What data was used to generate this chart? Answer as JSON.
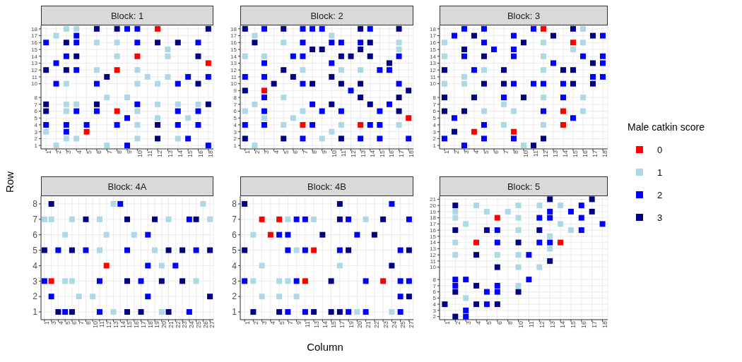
{
  "chart_data": [
    {
      "type": "scatter",
      "title": "Block: 1",
      "marker": "square",
      "grid": true,
      "legend": "right",
      "legend_title": "Male catkin score",
      "categories": [
        "1",
        "2",
        "3",
        "4",
        "5",
        "6",
        "7",
        "8",
        "9",
        "10",
        "11",
        "12",
        "13",
        "14",
        "15",
        "16",
        "18"
      ],
      "ylim": [
        0.5,
        18.5
      ],
      "yticks": [
        1,
        2,
        3,
        4,
        5,
        6,
        7,
        8,
        10,
        11,
        12,
        13,
        14,
        15,
        16,
        17,
        18
      ],
      "series": [
        {
          "name": "0",
          "color": "#ff0000",
          "x": [
            "12",
            "10",
            "18",
            "8",
            "8",
            "5"
          ],
          "values": [
            18,
            14,
            13,
            12,
            6,
            3
          ]
        },
        {
          "name": "1",
          "color": "#add8e6",
          "x": [
            "3",
            "4",
            "2",
            "6",
            "8",
            "13",
            "8",
            "13",
            "6",
            "10",
            "11",
            "13",
            "3",
            "10",
            "12",
            "7",
            "9",
            "3",
            "4",
            "12",
            "14",
            "16",
            "3",
            "10",
            "12",
            "15",
            "10",
            "1",
            "3",
            "4",
            "10",
            "14",
            "2",
            "7"
          ],
          "values": [
            18,
            18,
            17,
            16,
            16,
            15,
            14,
            14,
            12,
            12,
            11,
            11,
            10,
            10,
            10,
            8,
            8,
            7,
            7,
            7,
            7,
            7,
            6,
            6,
            5,
            5,
            4,
            3,
            2,
            2,
            2,
            2,
            1,
            1
          ]
        },
        {
          "name": "2",
          "color": "#0000ff",
          "x": [
            "9",
            "10",
            "4",
            "1",
            "4",
            "10",
            "16",
            "3",
            "2",
            "4",
            "15",
            "18",
            "2",
            "6",
            "14",
            "10",
            "4",
            "6",
            "14",
            "16",
            "9",
            "1",
            "3",
            "5",
            "8",
            "14",
            "16",
            "3",
            "15",
            "9",
            "18"
          ],
          "values": [
            18,
            18,
            17,
            16,
            16,
            16,
            16,
            14,
            13,
            12,
            11,
            11,
            10,
            10,
            10,
            7,
            6,
            6,
            6,
            6,
            5,
            4,
            4,
            4,
            4,
            4,
            4,
            3,
            2,
            1,
            1
          ]
        },
        {
          "name": "3",
          "color": "#000080",
          "x": [
            "6",
            "8",
            "18",
            "3",
            "12",
            "14",
            "4",
            "16",
            "1",
            "3",
            "7",
            "16",
            "1",
            "6",
            "18",
            "1",
            "12",
            "12"
          ],
          "values": [
            18,
            18,
            18,
            16,
            16,
            16,
            14,
            14,
            12,
            12,
            11,
            10,
            7,
            7,
            7,
            6,
            4,
            2
          ]
        }
      ]
    },
    {
      "type": "scatter",
      "title": "Block: 2",
      "marker": "square",
      "grid": true,
      "categories": [
        "1",
        "2",
        "3",
        "4",
        "5",
        "6",
        "7",
        "8",
        "9",
        "10",
        "11",
        "12",
        "13",
        "14",
        "15",
        "16",
        "17",
        "18"
      ],
      "ylim": [
        0.5,
        18.5
      ],
      "yticks": [
        1,
        2,
        3,
        4,
        5,
        6,
        7,
        8,
        9,
        10,
        11,
        12,
        13,
        14,
        15,
        16,
        17,
        18
      ],
      "series": [
        {
          "name": "0",
          "color": "#ff0000",
          "x": [
            "3",
            "18",
            "7",
            "13"
          ],
          "values": [
            9,
            5,
            4,
            4
          ]
        },
        {
          "name": "1",
          "color": "#add8e6",
          "x": [
            "2",
            "10",
            "5",
            "17",
            "17",
            "1",
            "3",
            "7",
            "11",
            "13",
            "5",
            "2",
            "1",
            "7",
            "3",
            "6",
            "5",
            "11",
            "17",
            "10",
            "9",
            "2"
          ],
          "values": [
            17,
            17,
            16,
            16,
            15,
            14,
            14,
            12,
            12,
            12,
            8,
            7,
            6,
            6,
            5,
            5,
            4,
            4,
            4,
            3,
            2,
            1
          ]
        },
        {
          "name": "2",
          "color": "#0000ff",
          "x": [
            "3",
            "7",
            "8",
            "9",
            "14",
            "7",
            "10",
            "11",
            "13",
            "6",
            "7",
            "17",
            "3",
            "10",
            "15",
            "16",
            "1",
            "3",
            "7",
            "17",
            "12",
            "3",
            "8",
            "16",
            "3",
            "9",
            "11",
            "15",
            "1",
            "3",
            "8",
            "14",
            "15",
            "7",
            "13",
            "15",
            "18"
          ],
          "values": [
            18,
            18,
            18,
            18,
            18,
            16,
            16,
            16,
            16,
            14,
            14,
            14,
            13,
            13,
            12,
            12,
            11,
            11,
            10,
            10,
            9,
            8,
            7,
            7,
            6,
            6,
            6,
            6,
            4,
            4,
            4,
            4,
            4,
            2,
            2,
            2,
            2
          ]
        },
        {
          "name": "3",
          "color": "#000080",
          "x": [
            "1",
            "5",
            "13",
            "17",
            "2",
            "14",
            "8",
            "9",
            "13",
            "11",
            "12",
            "14",
            "16",
            "5",
            "6",
            "10",
            "4",
            "8",
            "11",
            "13",
            "1",
            "18",
            "13",
            "17",
            "10",
            "14",
            "17",
            "1",
            "5",
            "11"
          ],
          "values": [
            18,
            18,
            18,
            18,
            16,
            16,
            15,
            15,
            15,
            14,
            14,
            14,
            13,
            12,
            11,
            11,
            10,
            10,
            10,
            10,
            9,
            9,
            8,
            8,
            7,
            7,
            6,
            2,
            2,
            2
          ]
        }
      ]
    },
    {
      "type": "scatter",
      "title": "Block: 3",
      "marker": "square",
      "grid": true,
      "categories": [
        "1",
        "2",
        "3",
        "4",
        "5",
        "6",
        "7",
        "8",
        "10",
        "11",
        "12",
        "13",
        "14",
        "15",
        "16",
        "17",
        "18"
      ],
      "ylim": [
        0.5,
        18.5
      ],
      "yticks": [
        1,
        2,
        3,
        4,
        5,
        6,
        7,
        8,
        10,
        11,
        12,
        13,
        14,
        15,
        16,
        17,
        18
      ],
      "series": [
        {
          "name": "0",
          "color": "#ff0000",
          "x": [
            "12",
            "15",
            "14",
            "14",
            "4",
            "8"
          ],
          "values": [
            18,
            16,
            6,
            4,
            3,
            3
          ]
        },
        {
          "name": "1",
          "color": "#add8e6",
          "x": [
            "16",
            "1",
            "12",
            "16",
            "15",
            "1",
            "12",
            "5",
            "12",
            "3",
            "1",
            "3",
            "12",
            "16",
            "7",
            "5",
            "8",
            "16",
            "7",
            "12",
            "10"
          ],
          "values": [
            18,
            16,
            16,
            16,
            15,
            14,
            14,
            12,
            12,
            11,
            10,
            10,
            8,
            8,
            7,
            6,
            6,
            6,
            4,
            4,
            1
          ]
        },
        {
          "name": "2",
          "color": "#0000ff",
          "x": [
            "3",
            "5",
            "11",
            "2",
            "8",
            "18",
            "5",
            "6",
            "8",
            "3",
            "8",
            "16",
            "18",
            "13",
            "18",
            "4",
            "17",
            "18",
            "8",
            "11",
            "12",
            "14",
            "7",
            "14",
            "12",
            "2",
            "15",
            "5",
            "1",
            "5",
            "8",
            "3"
          ],
          "values": [
            18,
            18,
            18,
            17,
            17,
            17,
            16,
            15,
            15,
            14,
            14,
            14,
            14,
            13,
            13,
            12,
            11,
            11,
            10,
            10,
            10,
            10,
            8,
            8,
            6,
            5,
            5,
            4,
            2,
            2,
            2,
            1
          ]
        },
        {
          "name": "3",
          "color": "#000080",
          "x": [
            "15",
            "4",
            "13",
            "17",
            "10",
            "3",
            "5",
            "17",
            "1",
            "7",
            "14",
            "15",
            "5",
            "7",
            "15",
            "17",
            "1",
            "4",
            "10",
            "1",
            "3",
            "2",
            "12",
            "11"
          ],
          "values": [
            18,
            17,
            17,
            17,
            16,
            15,
            14,
            13,
            12,
            12,
            12,
            12,
            10,
            10,
            10,
            10,
            8,
            8,
            8,
            6,
            6,
            3,
            2,
            1
          ]
        }
      ]
    },
    {
      "type": "scatter",
      "title": "Block: 4A",
      "ylabel": "Row",
      "marker": "square",
      "grid": true,
      "categories": [
        "1",
        "3",
        "4",
        "5",
        "6",
        "7",
        "8",
        "10",
        "11",
        "12",
        "13",
        "14",
        "15",
        "16",
        "17",
        "18",
        "19",
        "20",
        "21",
        "22",
        "23",
        "24",
        "25",
        "26",
        "27"
      ],
      "ylim": [
        0.5,
        8.5
      ],
      "yticks": [
        1,
        2,
        3,
        4,
        5,
        6,
        7,
        8
      ],
      "series": [
        {
          "name": "0",
          "color": "#ff0000",
          "x": [
            "12",
            "3"
          ],
          "values": [
            4,
            3
          ]
        },
        {
          "name": "1",
          "color": "#add8e6",
          "x": [
            "13",
            "26",
            "1",
            "3",
            "6",
            "11",
            "21",
            "27",
            "5",
            "12",
            "16",
            "11",
            "19",
            "20",
            "5",
            "6",
            "25",
            "7",
            "10",
            "13",
            "20"
          ],
          "values": [
            8,
            8,
            7,
            7,
            7,
            7,
            7,
            7,
            6,
            6,
            6,
            5,
            5,
            4,
            3,
            3,
            3,
            2,
            2,
            1,
            1
          ]
        },
        {
          "name": "2",
          "color": "#0000ff",
          "x": [
            "14",
            "24",
            "18",
            "4",
            "8",
            "15",
            "25",
            "18",
            "22",
            "1",
            "11",
            "17",
            "3",
            "18",
            "5",
            "11",
            "24"
          ],
          "values": [
            8,
            7,
            6,
            5,
            5,
            5,
            5,
            4,
            4,
            3,
            3,
            3,
            2,
            2,
            1,
            1,
            1
          ]
        },
        {
          "name": "3",
          "color": "#000080",
          "x": [
            "3",
            "8",
            "15",
            "19",
            "25",
            "1",
            "6",
            "21",
            "23",
            "27",
            "15",
            "20",
            "23",
            "27",
            "4",
            "6",
            "15",
            "17",
            "21"
          ],
          "values": [
            8,
            7,
            7,
            7,
            7,
            5,
            5,
            5,
            5,
            5,
            3,
            3,
            3,
            2,
            1,
            1,
            1,
            1,
            1
          ]
        }
      ]
    },
    {
      "type": "scatter",
      "title": "Block: 4B",
      "xlabel": "Column",
      "marker": "square",
      "grid": true,
      "categories": [
        "1",
        "2",
        "3",
        "4",
        "5",
        "7",
        "9",
        "11",
        "13",
        "14",
        "15",
        "17",
        "19",
        "20",
        "21",
        "22",
        "23",
        "24",
        "25",
        "27"
      ],
      "ylim": [
        0.5,
        8.5
      ],
      "yticks": [
        1,
        2,
        3,
        4,
        5,
        6,
        7,
        8
      ],
      "series": [
        {
          "name": "0",
          "color": "#ff0000",
          "x": [
            "3",
            "5",
            "4",
            "13",
            "11",
            "23"
          ],
          "values": [
            7,
            7,
            6,
            5,
            3,
            3
          ]
        },
        {
          "name": "1",
          "color": "#add8e6",
          "x": [
            "7",
            "13",
            "21",
            "2",
            "9",
            "3",
            "17",
            "2",
            "5",
            "7",
            "3",
            "5",
            "9",
            "20",
            "24"
          ],
          "values": [
            7,
            7,
            7,
            6,
            5,
            4,
            4,
            3,
            3,
            3,
            2,
            2,
            2,
            1,
            1
          ]
        },
        {
          "name": "2",
          "color": "#0000ff",
          "x": [
            "24",
            "9",
            "11",
            "19",
            "27",
            "5",
            "7",
            "20",
            "7",
            "11",
            "17",
            "25",
            "1",
            "9",
            "21",
            "25",
            "27",
            "25",
            "7",
            "11",
            "19",
            "21",
            "25"
          ],
          "values": [
            8,
            7,
            7,
            7,
            7,
            6,
            6,
            6,
            5,
            5,
            5,
            5,
            3,
            3,
            3,
            3,
            3,
            2,
            1,
            1,
            1,
            1,
            1
          ]
        },
        {
          "name": "3",
          "color": "#000080",
          "x": [
            "1",
            "17",
            "17",
            "23",
            "14",
            "22",
            "1",
            "19",
            "27",
            "24",
            "15",
            "27",
            "2",
            "5",
            "13",
            "15",
            "17"
          ],
          "values": [
            8,
            8,
            7,
            7,
            6,
            6,
            5,
            5,
            5,
            4,
            3,
            2,
            1,
            1,
            1,
            1,
            1
          ]
        }
      ]
    },
    {
      "type": "scatter",
      "title": "Block: 5",
      "marker": "square",
      "grid": true,
      "categories": [
        "1",
        "2",
        "3",
        "4",
        "5",
        "6",
        "8",
        "10",
        "11",
        "12",
        "13",
        "14",
        "15",
        "16",
        "17",
        "18"
      ],
      "ylim": [
        1.5,
        21.5
      ],
      "yticks": [
        2,
        3,
        4,
        5,
        6,
        7,
        8,
        10,
        11,
        12,
        13,
        14,
        15,
        16,
        17,
        18,
        19,
        20,
        21
      ],
      "series": [
        {
          "name": "0",
          "color": "#ff0000",
          "x": [
            "6",
            "4",
            "14"
          ],
          "values": [
            18,
            14,
            14
          ]
        },
        {
          "name": "1",
          "color": "#add8e6",
          "x": [
            "4",
            "10",
            "12",
            "14",
            "2",
            "5",
            "8",
            "2",
            "10",
            "3",
            "14",
            "10",
            "15",
            "13",
            "2",
            "13",
            "2",
            "6",
            "10",
            "10",
            "12",
            "10",
            "3"
          ],
          "values": [
            20,
            20,
            20,
            20,
            19,
            19,
            19,
            18,
            18,
            17,
            17,
            16,
            16,
            15,
            14,
            13,
            12,
            12,
            12,
            10,
            10,
            7,
            5
          ]
        },
        {
          "name": "2",
          "color": "#0000ff",
          "x": [
            "16",
            "13",
            "15",
            "12",
            "13",
            "16",
            "18",
            "6",
            "16",
            "6",
            "12",
            "13",
            "11",
            "2",
            "3",
            "11",
            "2",
            "6",
            "5",
            "6",
            "5",
            "3",
            "3"
          ],
          "values": [
            20,
            19,
            19,
            18,
            18,
            18,
            17,
            16,
            16,
            14,
            14,
            14,
            12,
            8,
            8,
            8,
            7,
            7,
            6,
            6,
            4,
            3,
            2
          ]
        },
        {
          "name": "3",
          "color": "#000080",
          "x": [
            "13",
            "17",
            "2",
            "17",
            "2",
            "5",
            "12",
            "10",
            "4",
            "13",
            "6",
            "4",
            "2",
            "10",
            "1",
            "4",
            "6",
            "2"
          ],
          "values": [
            21,
            21,
            20,
            19,
            16,
            16,
            16,
            14,
            12,
            11,
            10,
            7,
            6,
            6,
            4,
            4,
            4,
            2
          ]
        }
      ]
    }
  ]
}
